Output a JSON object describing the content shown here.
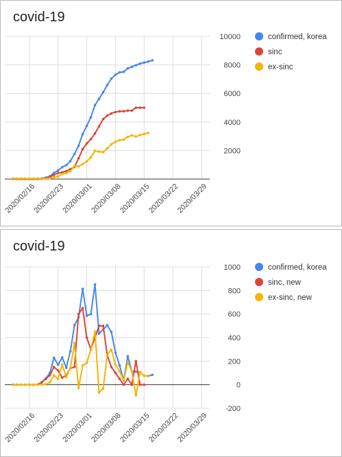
{
  "chart_data": [
    {
      "type": "line",
      "title": "covid-19",
      "x": [
        "2020-02-12",
        "2020-02-13",
        "2020-02-14",
        "2020-02-15",
        "2020-02-16",
        "2020-02-17",
        "2020-02-18",
        "2020-02-19",
        "2020-02-20",
        "2020-02-21",
        "2020-02-22",
        "2020-02-23",
        "2020-02-24",
        "2020-02-25",
        "2020-02-26",
        "2020-02-27",
        "2020-02-28",
        "2020-02-29",
        "2020-03-01",
        "2020-03-02",
        "2020-03-03",
        "2020-03-04",
        "2020-03-05",
        "2020-03-06",
        "2020-03-07",
        "2020-03-08",
        "2020-03-09",
        "2020-03-10",
        "2020-03-11",
        "2020-03-12",
        "2020-03-13",
        "2020-03-14",
        "2020-03-15",
        "2020-03-16",
        "2020-03-17"
      ],
      "x_ticks": [
        "2020/02/16",
        "2020/02/23",
        "2020/03/01",
        "2020/03/08",
        "2020/03/15",
        "2020/03/22",
        "2020/03/29"
      ],
      "xlim": [
        "2020-02-10",
        "2020-03-31"
      ],
      "ylim": [
        0,
        10000
      ],
      "y_ticks": [
        2000,
        4000,
        6000,
        8000,
        10000
      ],
      "grid": true,
      "legend": "top-right",
      "series": [
        {
          "name": "confirmed, korea",
          "color": "#4285f4",
          "values": [
            28,
            28,
            28,
            29,
            30,
            30,
            31,
            51,
            104,
            204,
            433,
            602,
            833,
            977,
            1261,
            1766,
            2337,
            3150,
            3736,
            4335,
            5186,
            5621,
            6088,
            6593,
            7041,
            7313,
            7478,
            7513,
            7755,
            7869,
            7979,
            8086,
            8162,
            8236,
            8320
          ]
        },
        {
          "name": "sinc",
          "color": "#db4437",
          "values": [
            0,
            0,
            0,
            0,
            0,
            0,
            1,
            20,
            70,
            150,
            300,
            420,
            480,
            560,
            700,
            850,
            1450,
            2100,
            2500,
            2800,
            3200,
            3700,
            4200,
            4450,
            4600,
            4700,
            4750,
            4750,
            4800,
            4800,
            5000,
            5000,
            5000,
            null,
            null
          ]
        },
        {
          "name": "ex-sinc",
          "color": "#f4b400",
          "values": [
            28,
            28,
            28,
            29,
            30,
            30,
            30,
            31,
            34,
            54,
            133,
            182,
            353,
            417,
            561,
            916,
            887,
            1050,
            1236,
            1535,
            1986,
            1921,
            1888,
            2143,
            2441,
            2613,
            2728,
            2763,
            2955,
            3069,
            2979,
            3086,
            3162,
            3236,
            null
          ]
        }
      ]
    },
    {
      "type": "line",
      "title": "covid-19",
      "x": [
        "2020-02-12",
        "2020-02-13",
        "2020-02-14",
        "2020-02-15",
        "2020-02-16",
        "2020-02-17",
        "2020-02-18",
        "2020-02-19",
        "2020-02-20",
        "2020-02-21",
        "2020-02-22",
        "2020-02-23",
        "2020-02-24",
        "2020-02-25",
        "2020-02-26",
        "2020-02-27",
        "2020-02-28",
        "2020-02-29",
        "2020-03-01",
        "2020-03-02",
        "2020-03-03",
        "2020-03-04",
        "2020-03-05",
        "2020-03-06",
        "2020-03-07",
        "2020-03-08",
        "2020-03-09",
        "2020-03-10",
        "2020-03-11",
        "2020-03-12",
        "2020-03-13",
        "2020-03-14",
        "2020-03-15",
        "2020-03-16",
        "2020-03-17"
      ],
      "x_ticks": [
        "2020/02/16",
        "2020/02/23",
        "2020/03/01",
        "2020/03/08",
        "2020/03/15",
        "2020/03/22",
        "2020/03/29"
      ],
      "xlim": [
        "2020-02-10",
        "2020-03-31"
      ],
      "ylim": [
        -200,
        1000
      ],
      "y_ticks": [
        -200,
        0,
        200,
        400,
        600,
        800,
        1000
      ],
      "grid": true,
      "legend": "top-right",
      "series": [
        {
          "name": "confirmed, korea",
          "color": "#4285f4",
          "values": [
            0,
            0,
            0,
            1,
            1,
            0,
            1,
            20,
            53,
            100,
            229,
            169,
            231,
            144,
            284,
            505,
            571,
            813,
            586,
            599,
            851,
            435,
            467,
            505,
            448,
            272,
            165,
            35,
            242,
            114,
            110,
            107,
            76,
            74,
            84
          ]
        },
        {
          "name": "sinc, new",
          "color": "#db4437",
          "values": [
            0,
            0,
            0,
            0,
            0,
            0,
            1,
            19,
            50,
            80,
            150,
            120,
            60,
            80,
            140,
            150,
            600,
            650,
            400,
            300,
            400,
            500,
            500,
            250,
            150,
            100,
            50,
            0,
            50,
            0,
            200,
            0,
            0,
            null,
            null
          ]
        },
        {
          "name": "ex-sinc, new",
          "color": "#f4b400",
          "values": [
            0,
            0,
            0,
            1,
            1,
            0,
            0,
            1,
            3,
            20,
            79,
            49,
            171,
            64,
            144,
            355,
            -29,
            163,
            186,
            299,
            451,
            -65,
            -33,
            255,
            298,
            172,
            115,
            35,
            192,
            114,
            -90,
            107,
            76,
            74,
            null
          ]
        }
      ]
    }
  ]
}
